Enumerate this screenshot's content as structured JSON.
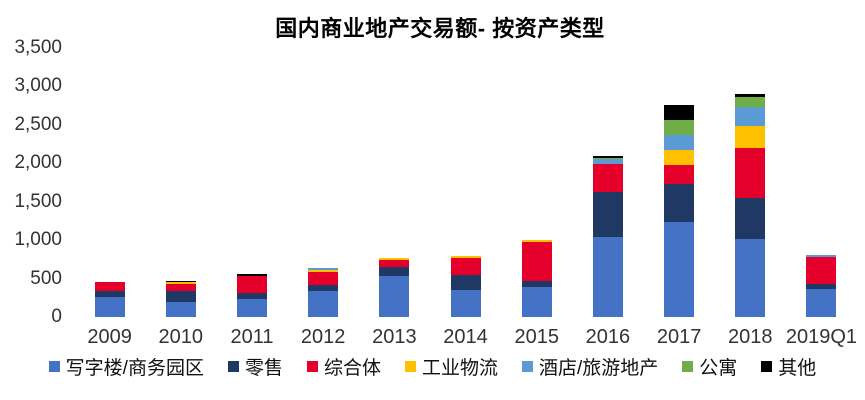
{
  "chart_data": {
    "type": "bar",
    "stacked": true,
    "title": "国内商业地产交易额- 按资产类型",
    "categories": [
      "2009",
      "2010",
      "2011",
      "2012",
      "2013",
      "2014",
      "2015",
      "2016",
      "2017",
      "2018",
      "2019Q1"
    ],
    "series": [
      {
        "name": "写字楼/商务园区",
        "color": "#4472C4",
        "values": [
          255,
          190,
          230,
          335,
          540,
          350,
          385,
          1040,
          1240,
          1020,
          370
        ]
      },
      {
        "name": "零售",
        "color": "#1F3864",
        "values": [
          80,
          155,
          80,
          80,
          115,
          195,
          90,
          585,
          490,
          530,
          65
        ]
      },
      {
        "name": "综合体",
        "color": "#E4002B",
        "values": [
          115,
          80,
          220,
          170,
          90,
          220,
          505,
          360,
          250,
          645,
          350
        ]
      },
      {
        "name": "工业物流",
        "color": "#FFC000",
        "values": [
          10,
          25,
          0,
          25,
          25,
          25,
          25,
          0,
          195,
          285,
          0
        ]
      },
      {
        "name": "酒店/旅游地产",
        "color": "#5B9BD5",
        "values": [
          0,
          0,
          0,
          25,
          0,
          0,
          0,
          65,
          200,
          255,
          25
        ]
      },
      {
        "name": "公寓",
        "color": "#70AD47",
        "values": [
          0,
          0,
          0,
          0,
          0,
          0,
          0,
          25,
          190,
          130,
          0
        ]
      },
      {
        "name": "其他",
        "color": "#000000",
        "values": [
          0,
          25,
          25,
          0,
          0,
          0,
          0,
          25,
          195,
          40,
          0
        ]
      }
    ],
    "totals": [
      460,
      475,
      555,
      635,
      770,
      790,
      1005,
      2100,
      2760,
      2905,
      810
    ],
    "ylim": [
      0,
      3500
    ],
    "ytick_step": 500,
    "ytick_labels": [
      "0",
      "500",
      "1,000",
      "1,500",
      "2,000",
      "2,500",
      "3,000",
      "3,500"
    ],
    "grid": false,
    "axis_lines": false,
    "legend_position": "bottom"
  }
}
